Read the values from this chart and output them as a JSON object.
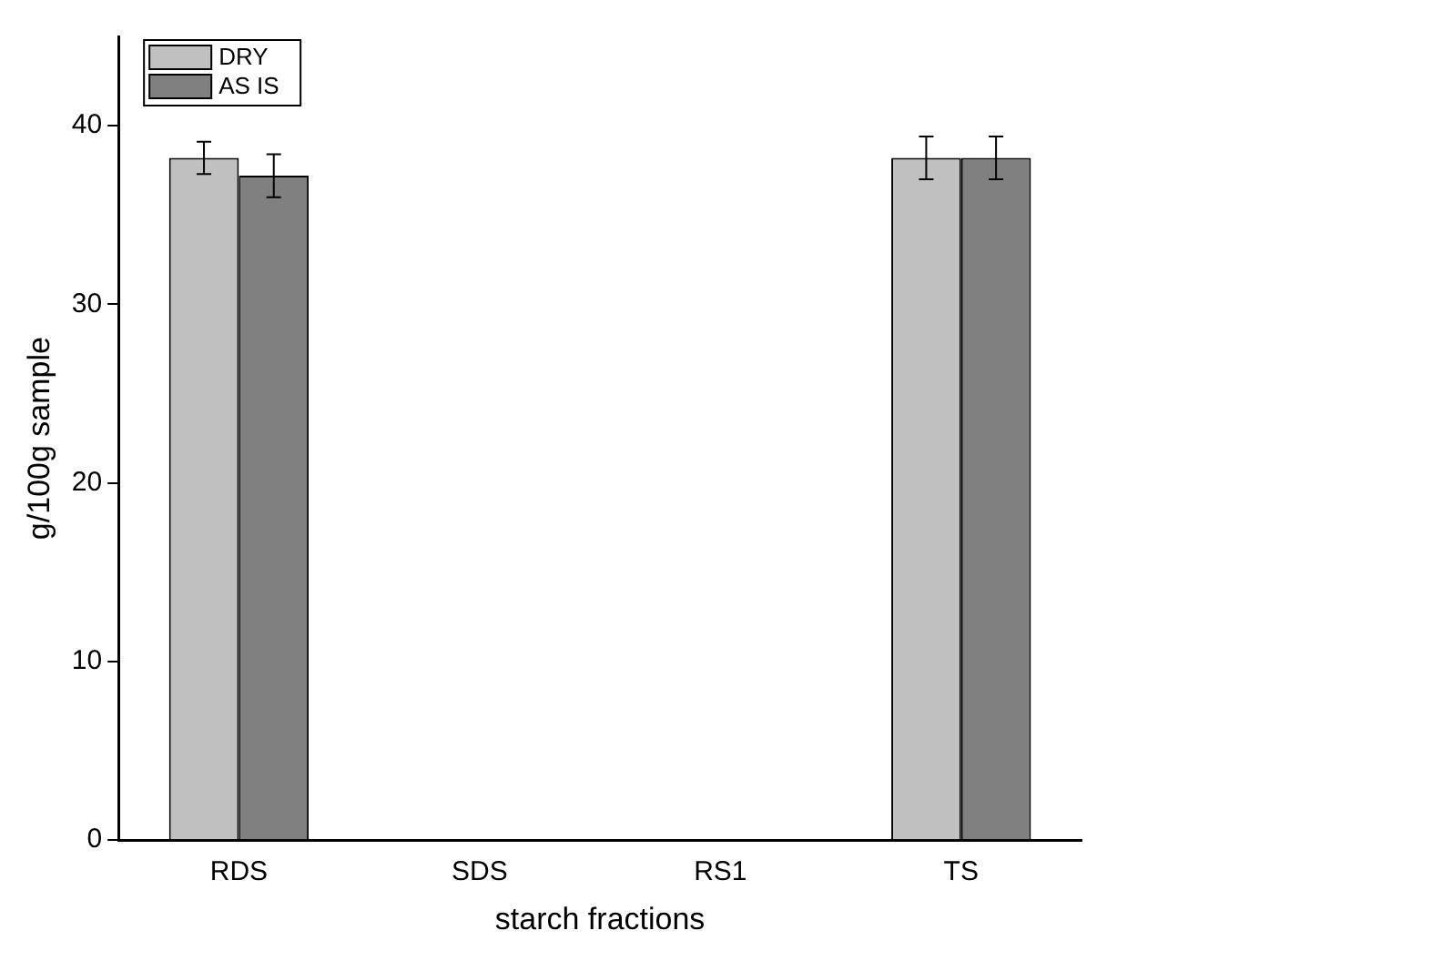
{
  "chart_data": {
    "type": "bar",
    "xlabel": "starch fractions",
    "ylabel": "g/100g sample",
    "categories": [
      "RDS",
      "SDS",
      "RS1",
      "TS"
    ],
    "series": [
      {
        "name": "DRY",
        "color": "#c0c0c0",
        "values": [
          38.2,
          0,
          0,
          38.2
        ],
        "errors": [
          0.9,
          null,
          null,
          1.2
        ]
      },
      {
        "name": "AS IS",
        "color": "#808080",
        "values": [
          37.2,
          0,
          0,
          38.2
        ],
        "errors": [
          1.2,
          null,
          null,
          1.2
        ]
      }
    ],
    "ylim": [
      0,
      45
    ],
    "yticks": [
      0,
      10,
      20,
      30,
      40
    ],
    "grid": false,
    "legend": "top left"
  }
}
